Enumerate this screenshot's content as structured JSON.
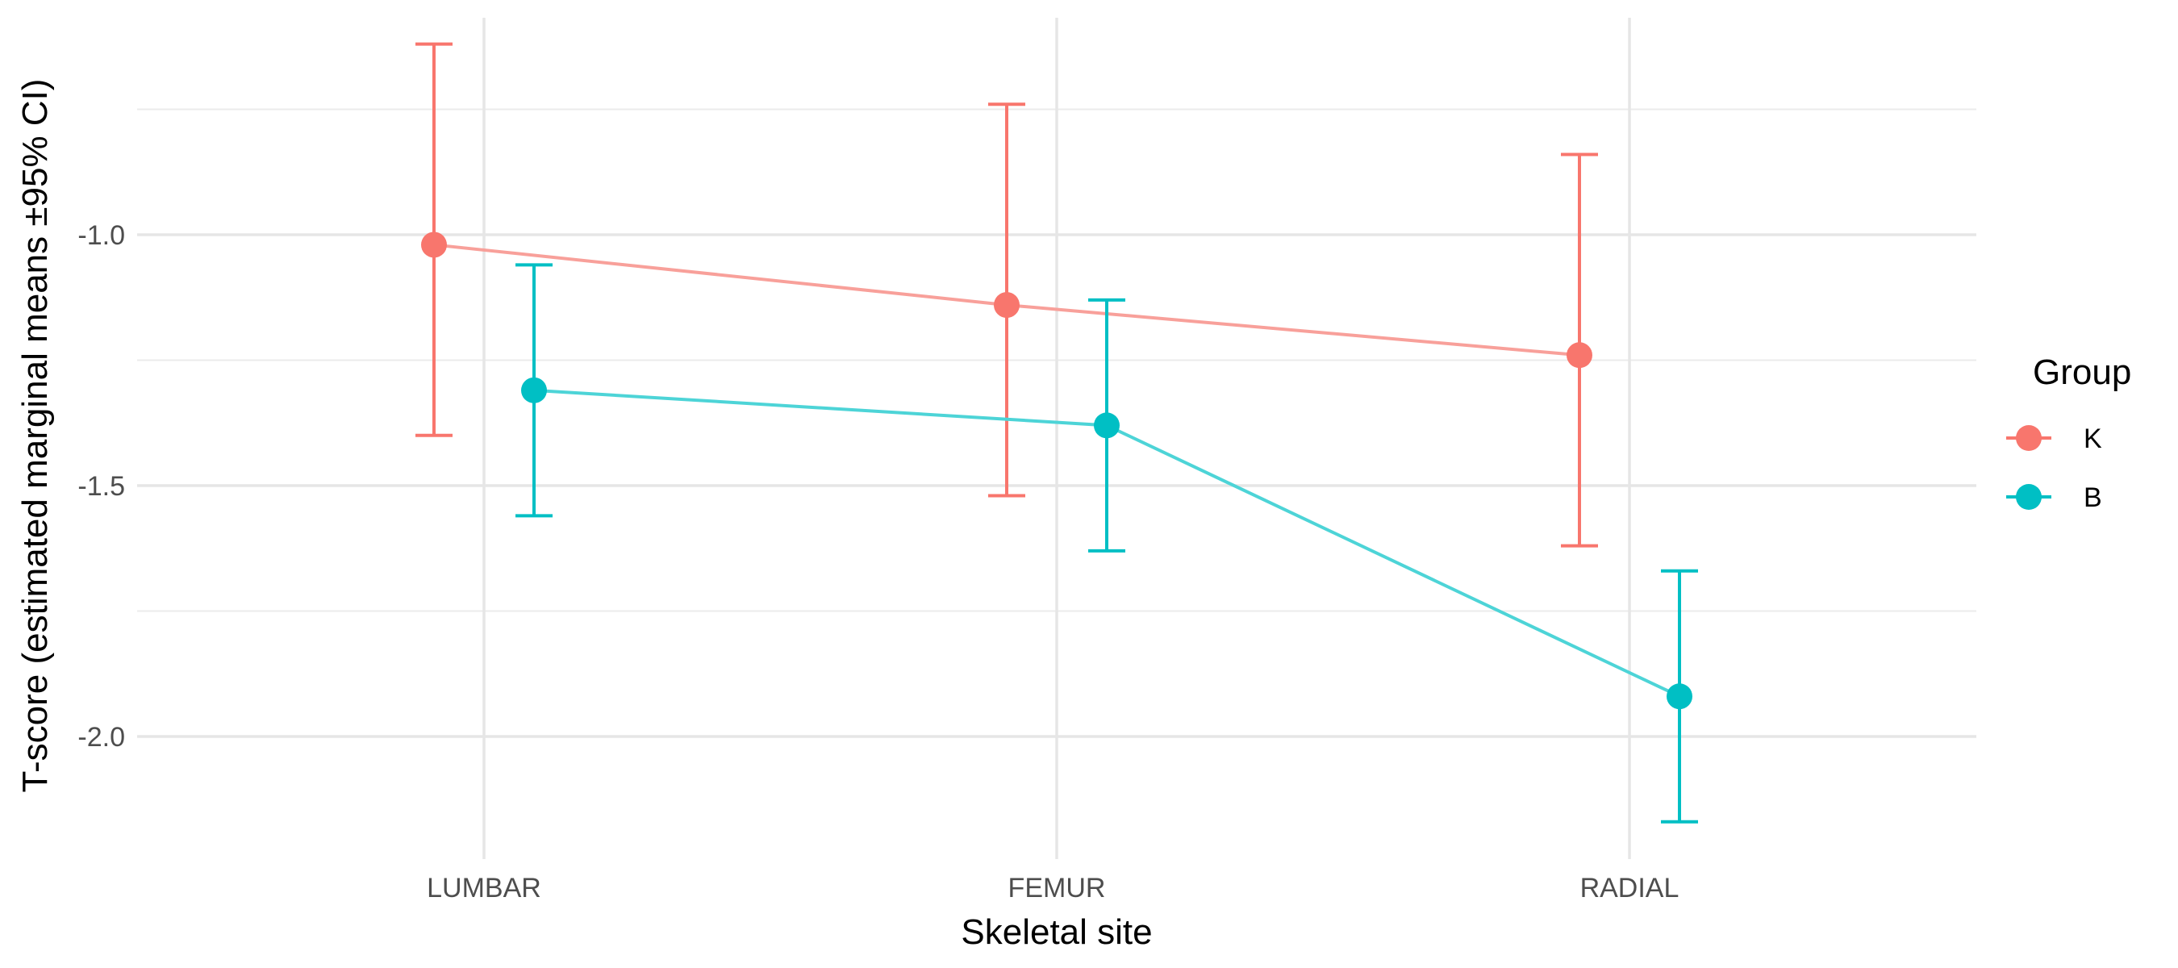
{
  "chart_data": {
    "type": "line",
    "xlabel": "Skeletal site",
    "ylabel": "T-score (estimated marginal means ±95% CI)",
    "categories": [
      "LUMBAR",
      "FEMUR",
      "RADIAL"
    ],
    "ylim": [
      -2.2,
      -0.68
    ],
    "yticks": [
      -1.0,
      -1.5,
      -2.0
    ],
    "ytick_labels": [
      "-1.0",
      "-1.5",
      "-2.0"
    ],
    "grid": true,
    "legend": {
      "title": "Group",
      "placement": "right"
    },
    "series": [
      {
        "name": "K",
        "color": "#F8766D",
        "line_color": "#F8A09A",
        "values": [
          -1.02,
          -1.14,
          -1.24
        ],
        "lower": [
          -1.4,
          -1.52,
          -1.62
        ],
        "upper": [
          -0.62,
          -0.74,
          -0.84
        ]
      },
      {
        "name": "B",
        "color": "#00BFC4",
        "line_color": "#4DD4D7",
        "values": [
          -1.31,
          -1.38,
          -1.92
        ],
        "lower": [
          -1.56,
          -1.63,
          -2.17
        ],
        "upper": [
          -1.06,
          -1.13,
          -1.67
        ]
      }
    ]
  }
}
